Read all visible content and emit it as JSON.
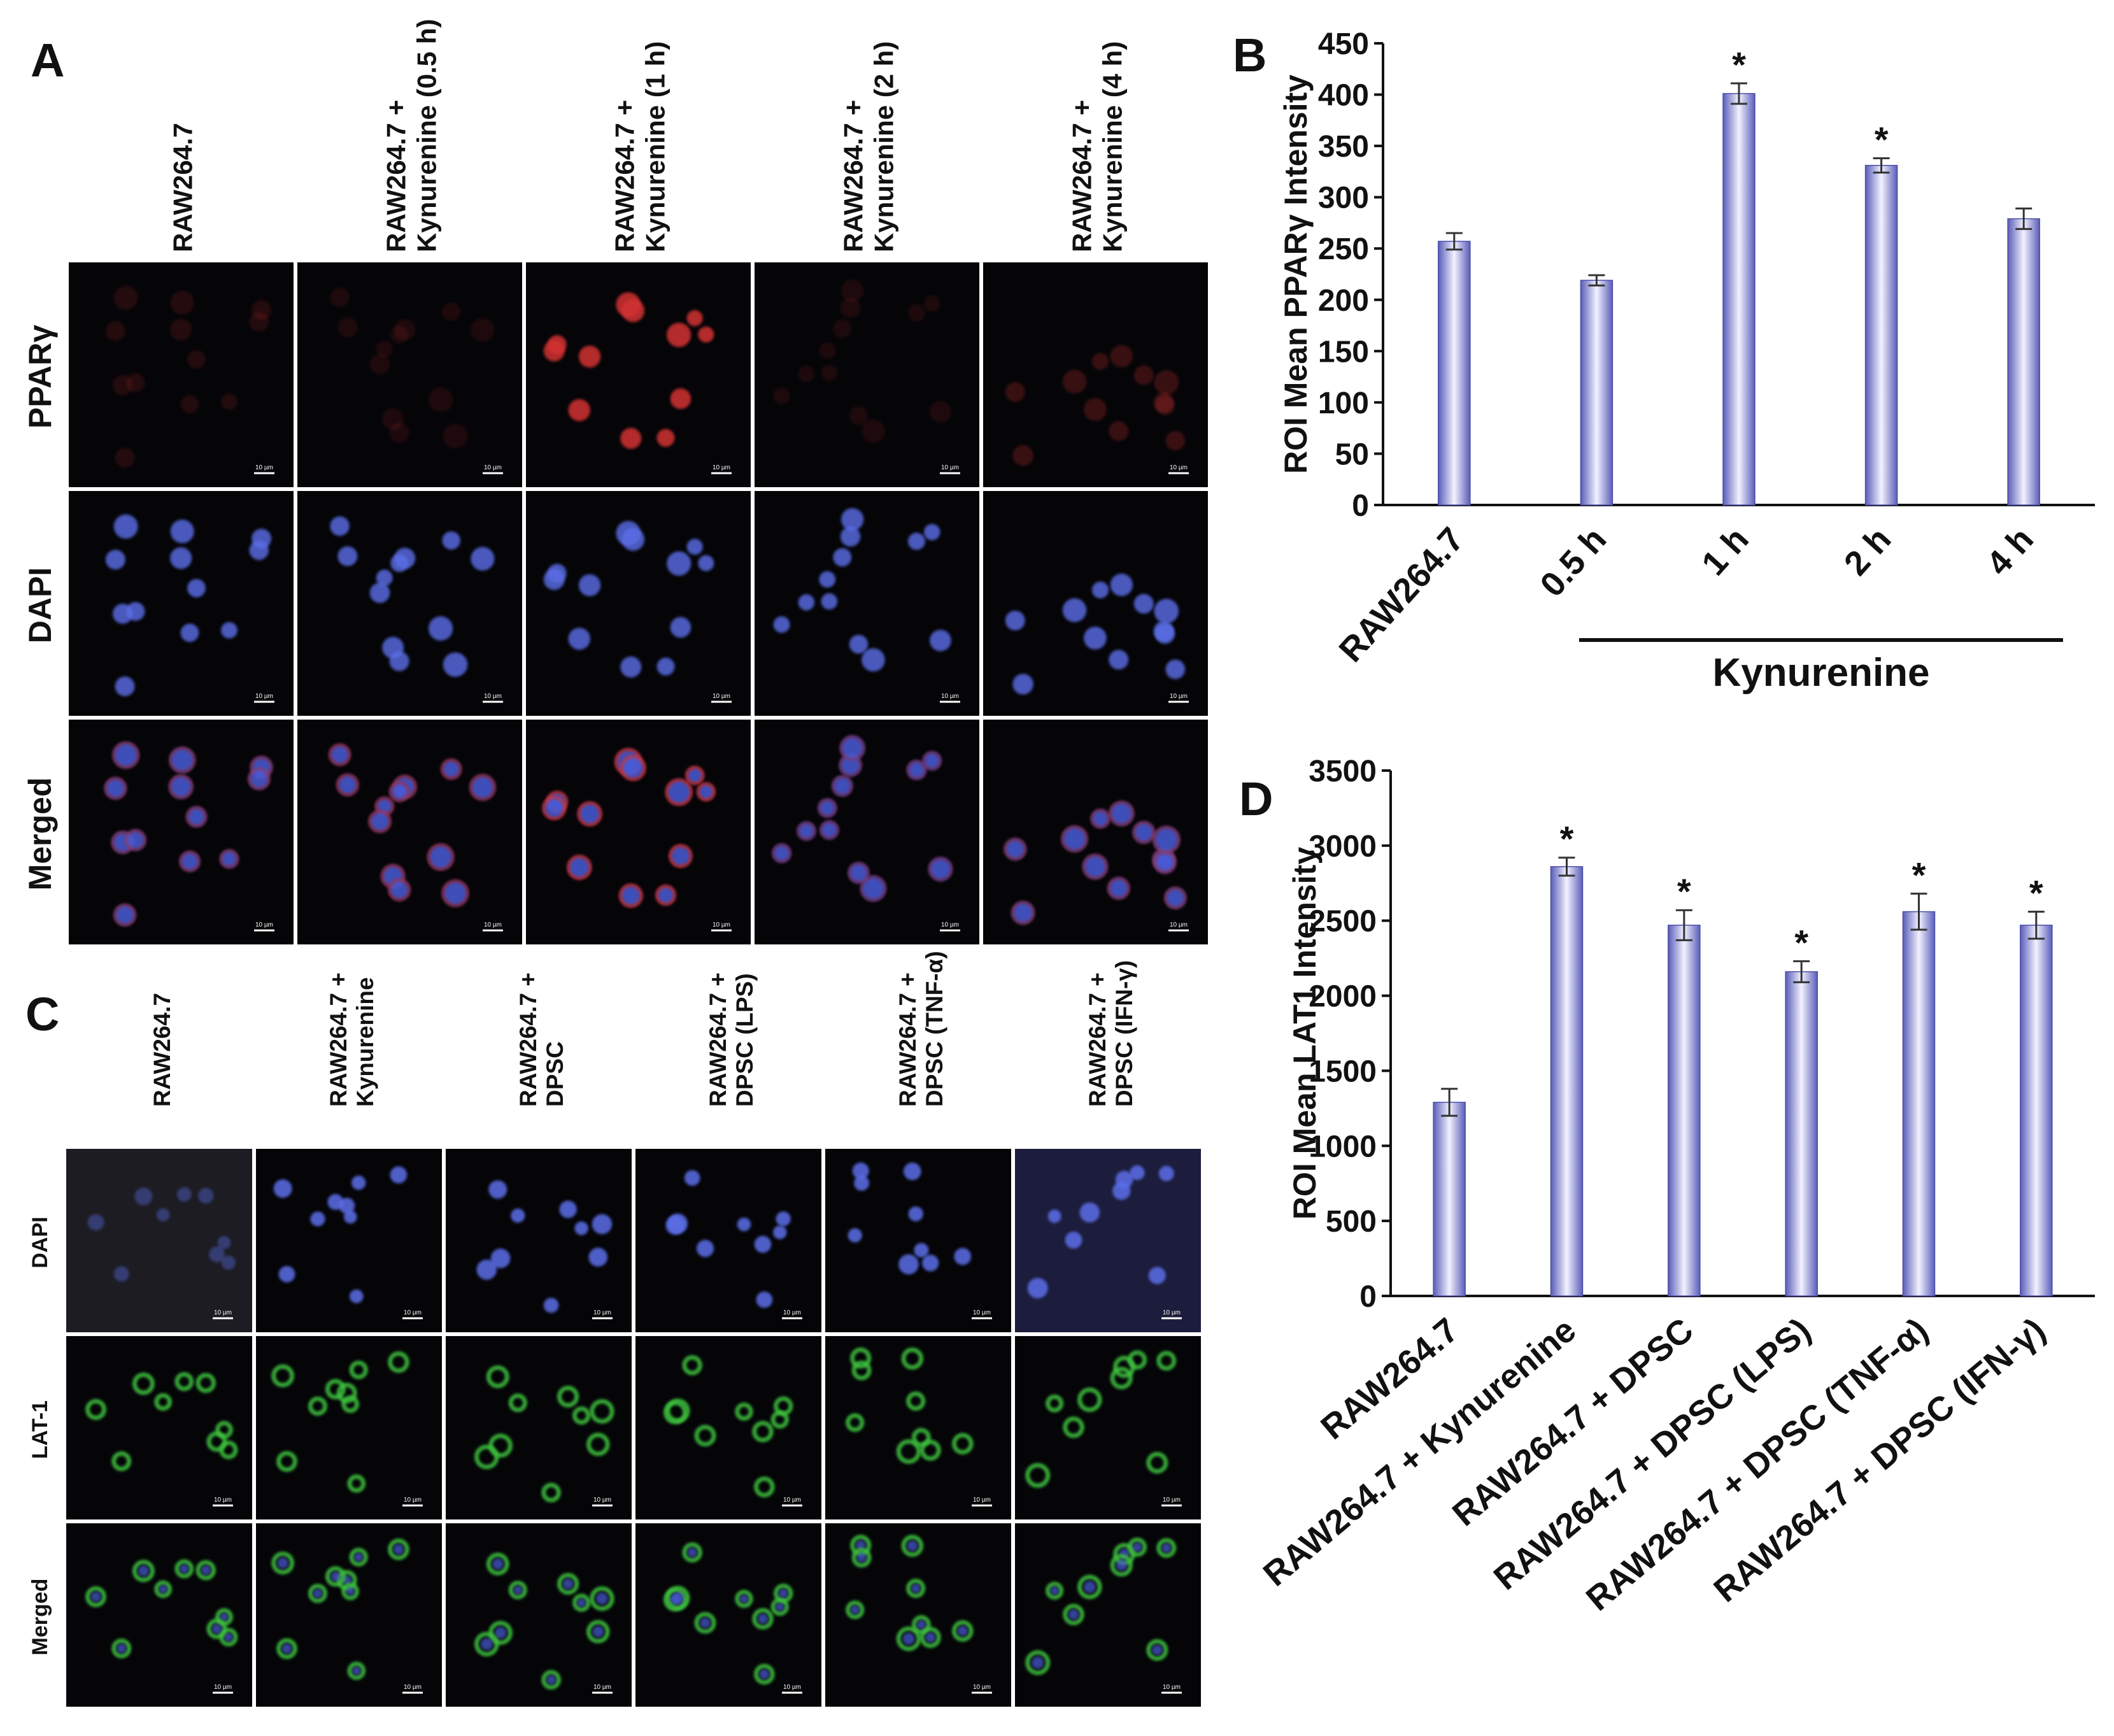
{
  "panels": {
    "A": {
      "letter": "A",
      "columns": [
        "RAW264.7",
        "RAW264.7 +|Kynurenine (0.5 h)",
        "RAW264.7 +|Kynurenine (1 h)",
        "RAW264.7 +|Kynurenine (2 h)",
        "RAW264.7 +|Kynurenine (4 h)"
      ],
      "rows": [
        "PPARγ",
        "DAPI",
        "Merged"
      ],
      "scale_bar": "10 µm",
      "stain_colors": {
        "PPARγ": "#d23030",
        "DAPI": "#5b6ee8",
        "Merged": "#b060c0"
      }
    },
    "C": {
      "letter": "C",
      "columns": [
        "RAW264.7",
        "RAW264.7 +|Kynurenine",
        "RAW264.7 +|DPSC",
        "RAW264.7 +|DPSC (LPS)",
        "RAW264.7 +|DPSC (TNF-α)",
        "RAW264.7 +|DPSC (IFN-γ)"
      ],
      "rows": [
        "DAPI",
        "LAT-1",
        "Merged"
      ],
      "scale_bar": "10 µm",
      "stain_colors": {
        "DAPI": "#5b6ee8",
        "LAT-1": "#3ec23e",
        "Merged": "#3ec23e"
      }
    }
  },
  "chart_data": [
    {
      "letter": "B",
      "type": "bar",
      "categories": [
        "RAW264.7",
        "0.5 h",
        "1 h",
        "2 h",
        "4 h"
      ],
      "values": [
        257,
        219,
        401,
        331,
        279
      ],
      "errors": [
        8,
        5,
        10,
        7,
        10
      ],
      "significant": [
        false,
        false,
        true,
        true,
        false
      ],
      "ylabel": "ROI Mean PPARγ Intensity",
      "ylim": [
        0,
        450
      ],
      "yticks": [
        0,
        50,
        100,
        150,
        200,
        250,
        300,
        350,
        400,
        450
      ],
      "group_label": "Kynurenine",
      "star": "*",
      "bar_color": "#6f72c8"
    },
    {
      "letter": "D",
      "type": "bar",
      "categories": [
        "RAW264.7",
        "RAW264.7 + Kynurenine",
        "RAW264.7 + DPSC",
        "RAW264.7 + DPSC (LPS)",
        "RAW264.7 + DPSC (TNF-α)",
        "RAW264.7 + DPSC (IFN-γ)"
      ],
      "values": [
        1290,
        2860,
        2470,
        2160,
        2560,
        2470
      ],
      "errors": [
        90,
        60,
        100,
        70,
        120,
        90
      ],
      "significant": [
        false,
        true,
        true,
        true,
        true,
        true
      ],
      "ylabel": "ROI Mean LAT1 Intensity",
      "ylim": [
        0,
        3500
      ],
      "yticks": [
        0,
        500,
        1000,
        1500,
        2000,
        2500,
        3000,
        3500
      ],
      "star": "*",
      "bar_color": "#6f72c8"
    }
  ]
}
